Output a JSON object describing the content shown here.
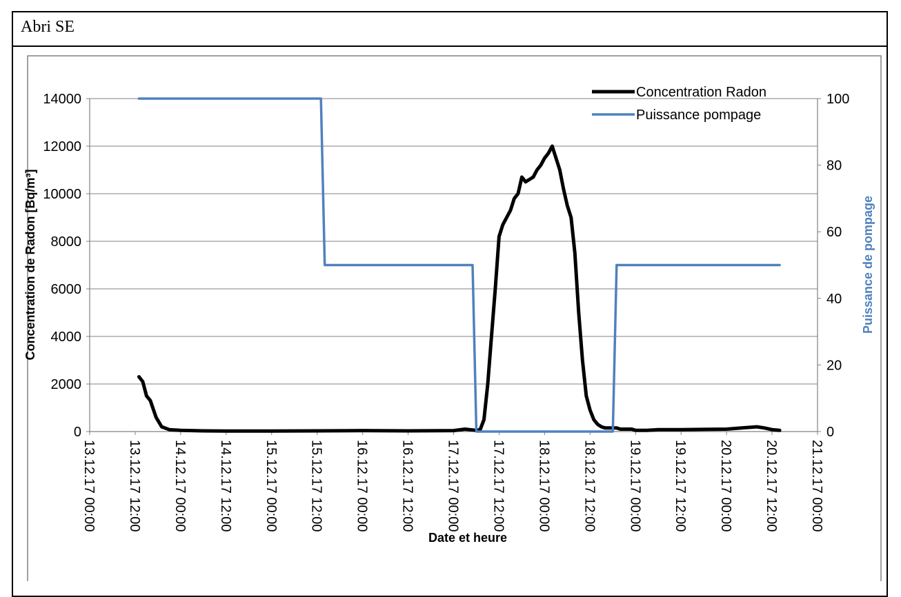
{
  "section_title": "Abri SE",
  "colors": {
    "radon": "#000000",
    "pump": "#4f81bd",
    "grid": "#808080",
    "frame": "#000000",
    "right_axis_title": "#4f81bd"
  },
  "chart_data": {
    "type": "line",
    "title": "",
    "xlabel": "Date et heure",
    "ylabel_left": "Concentration de Radon  [Bq/m³]",
    "ylabel_right": "Puissance de pompage",
    "ylim_left": [
      0,
      14000
    ],
    "ylim_right": [
      0,
      100
    ],
    "yticks_left": [
      "0",
      "2000",
      "4000",
      "6000",
      "8000",
      "10000",
      "12000",
      "14000"
    ],
    "yticks_right": [
      "0",
      "20",
      "40",
      "60",
      "80",
      "100"
    ],
    "xlim": [
      "2017-12-13T00:00",
      "2017-12-21T00:00"
    ],
    "xticks": [
      "13.12.17 00:00",
      "13.12.17 12:00",
      "14.12.17 00:00",
      "14.12.17 12:00",
      "15.12.17 00:00",
      "15.12.17 12:00",
      "16.12.17 00:00",
      "16.12.17 12:00",
      "17.12.17 00:00",
      "17.12.17 12:00",
      "18.12.17 00:00",
      "18.12.17 12:00",
      "19.12.17 00:00",
      "19.12.17 12:00",
      "20.12.17 00:00",
      "20.12.17 12:00",
      "21.12.17 00:00"
    ],
    "grid": "horizontal",
    "legend": "top-right",
    "series": [
      {
        "name": "Concentration Radon",
        "axis": "left",
        "x": [
          "2017-12-13T13:00",
          "2017-12-13T14:00",
          "2017-12-13T15:00",
          "2017-12-13T16:00",
          "2017-12-13T17:30",
          "2017-12-13T19:00",
          "2017-12-13T21:00",
          "2017-12-14T00:00",
          "2017-12-14T06:00",
          "2017-12-14T12:00",
          "2017-12-15T00:00",
          "2017-12-15T12:00",
          "2017-12-16T00:00",
          "2017-12-16T12:00",
          "2017-12-17T00:00",
          "2017-12-17T03:00",
          "2017-12-17T06:00",
          "2017-12-17T07:00",
          "2017-12-17T08:00",
          "2017-12-17T09:00",
          "2017-12-17T10:00",
          "2017-12-17T11:00",
          "2017-12-17T12:00",
          "2017-12-17T13:00",
          "2017-12-17T14:00",
          "2017-12-17T15:00",
          "2017-12-17T16:00",
          "2017-12-17T17:00",
          "2017-12-17T18:00",
          "2017-12-17T19:00",
          "2017-12-17T20:00",
          "2017-12-17T21:00",
          "2017-12-17T22:00",
          "2017-12-17T23:00",
          "2017-12-18T00:00",
          "2017-12-18T01:00",
          "2017-12-18T02:00",
          "2017-12-18T03:00",
          "2017-12-18T04:00",
          "2017-12-18T05:00",
          "2017-12-18T06:00",
          "2017-12-18T07:00",
          "2017-12-18T08:00",
          "2017-12-18T09:00",
          "2017-12-18T10:00",
          "2017-12-18T11:00",
          "2017-12-18T12:00",
          "2017-12-18T13:00",
          "2017-12-18T14:00",
          "2017-12-18T15:00",
          "2017-12-18T16:00",
          "2017-12-18T17:00",
          "2017-12-18T18:00",
          "2017-12-18T19:00",
          "2017-12-18T20:00",
          "2017-12-18T21:00",
          "2017-12-18T22:00",
          "2017-12-18T23:00",
          "2017-12-19T00:00",
          "2017-12-19T01:00",
          "2017-12-19T03:00",
          "2017-12-19T06:00",
          "2017-12-19T12:00",
          "2017-12-20T00:00",
          "2017-12-20T04:00",
          "2017-12-20T08:00",
          "2017-12-20T10:00",
          "2017-12-20T12:00",
          "2017-12-20T14:00"
        ],
        "values": [
          2300,
          2100,
          1500,
          1300,
          600,
          200,
          80,
          50,
          30,
          20,
          20,
          30,
          40,
          30,
          40,
          100,
          50,
          80,
          500,
          2000,
          4000,
          6000,
          8200,
          8700,
          9000,
          9300,
          9800,
          10000,
          10700,
          10500,
          10600,
          10700,
          11000,
          11200,
          11500,
          11700,
          12000,
          11500,
          11000,
          10200,
          9500,
          9000,
          7500,
          5000,
          3000,
          1500,
          900,
          500,
          300,
          200,
          150,
          150,
          150,
          150,
          100,
          100,
          100,
          100,
          50,
          50,
          50,
          80,
          80,
          100,
          150,
          200,
          150,
          80,
          50
        ],
        "color": "#000000"
      },
      {
        "name": "Puissance pompage",
        "axis": "right",
        "x": [
          "2017-12-13T13:00",
          "2017-12-15T13:00",
          "2017-12-15T14:00",
          "2017-12-17T05:00",
          "2017-12-17T06:00",
          "2017-12-18T18:00",
          "2017-12-18T19:00",
          "2017-12-20T14:00"
        ],
        "values": [
          100,
          100,
          50,
          50,
          0,
          0,
          50,
          50
        ],
        "color": "#4f81bd"
      }
    ]
  }
}
